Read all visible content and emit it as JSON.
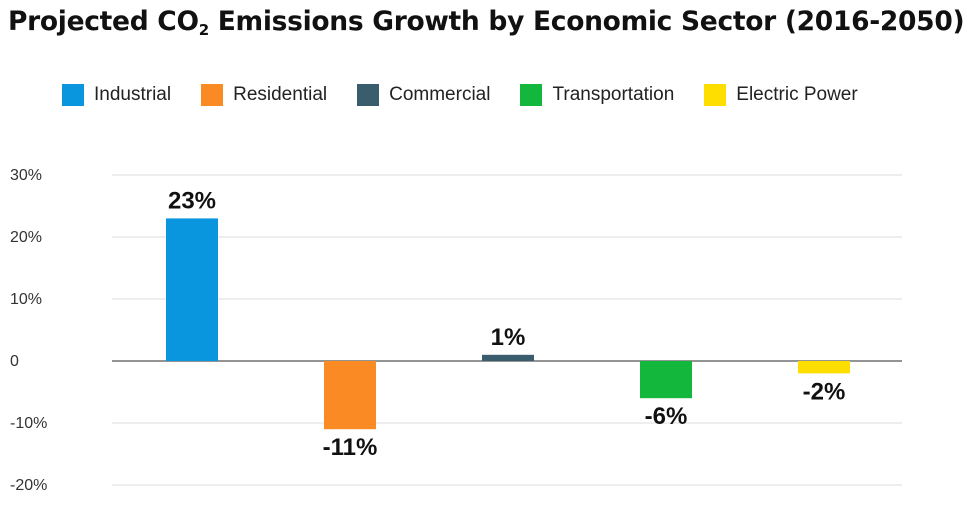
{
  "chart_data": {
    "type": "bar",
    "title_main": "Projected CO",
    "title_sub": "2",
    "title_rest": " Emissions Growth by Economic Sector (2016-2050)",
    "categories": [
      "Industrial",
      "Residential",
      "Commercial",
      "Transportation",
      "Electric Power"
    ],
    "values": [
      23,
      -11,
      1,
      -6,
      -2
    ],
    "value_labels": [
      "23%",
      "-11%",
      "1%",
      "-6%",
      "-2%"
    ],
    "colors": [
      "#0a96df",
      "#fa8a24",
      "#3a5d6e",
      "#12b73c",
      "#fedd00"
    ],
    "ylim": [
      -20,
      30
    ],
    "yticks": [
      30,
      20,
      10,
      0,
      -10,
      -20
    ],
    "ytick_labels": [
      "30%",
      "20%",
      "10%",
      "0",
      "-10%",
      "-20%"
    ],
    "legend_position": "top",
    "grid": true
  }
}
